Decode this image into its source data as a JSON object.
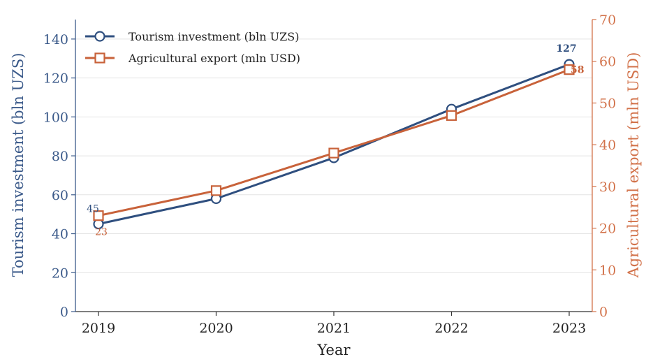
{
  "chart_data": {
    "type": "line",
    "title": "",
    "xlabel": "Year",
    "categories": [
      "2019",
      "2020",
      "2021",
      "2022",
      "2023"
    ],
    "y_left": {
      "label": "Tourism investment (bln UZS)",
      "lim": [
        0,
        150
      ],
      "ticks": [
        0,
        20,
        40,
        60,
        80,
        100,
        120,
        140
      ],
      "color": "#3b5a8a"
    },
    "y_right": {
      "label": "Agricultural export (mln USD)",
      "lim": [
        0,
        70
      ],
      "ticks": [
        0,
        10,
        20,
        30,
        40,
        50,
        60,
        70
      ],
      "color": "#d2724a"
    },
    "series": [
      {
        "name": "Tourism investment (bln UZS)",
        "axis": "left",
        "marker": "circle",
        "color": "#2f4f7f",
        "values": [
          45,
          58,
          79,
          104,
          127
        ],
        "labels": [
          {
            "index": 0,
            "text": "45"
          },
          {
            "index": 4,
            "text": "127"
          }
        ]
      },
      {
        "name": "Agricultural export (mln USD)",
        "axis": "right",
        "marker": "square",
        "color": "#c8623a",
        "values": [
          23,
          29,
          38,
          47,
          58
        ],
        "labels": [
          {
            "index": 0,
            "text": "23"
          },
          {
            "index": 4,
            "text": "58"
          }
        ]
      }
    ],
    "grid": "horizontal",
    "legend": "top-left"
  }
}
